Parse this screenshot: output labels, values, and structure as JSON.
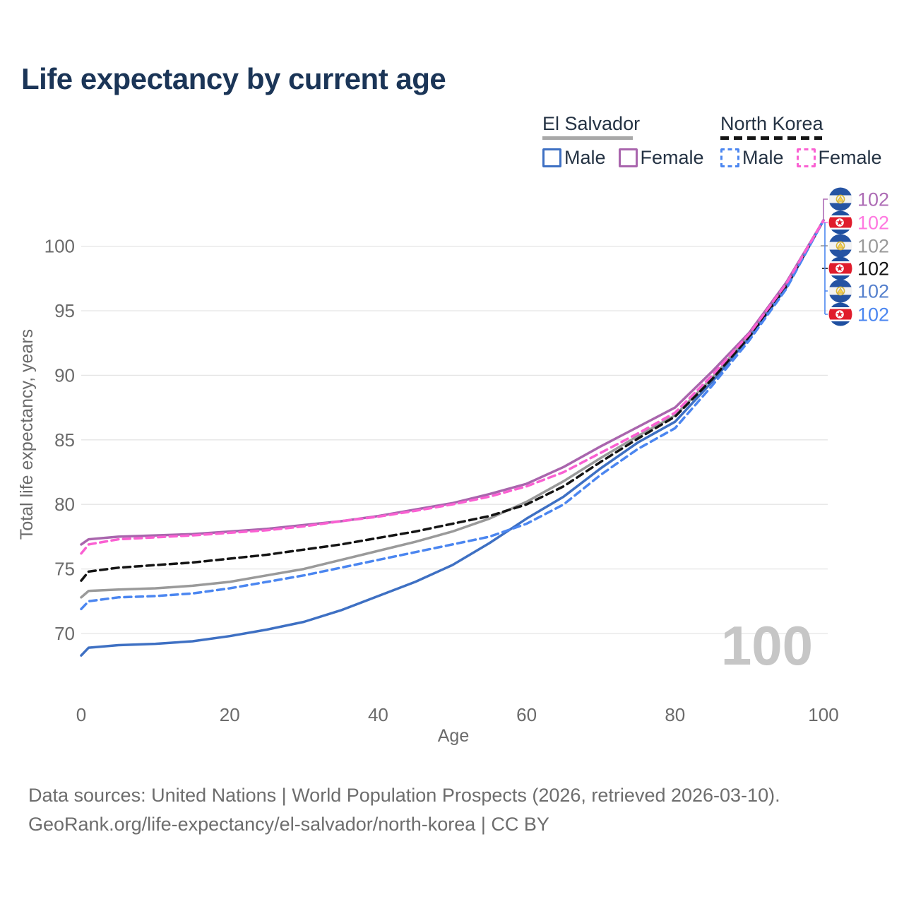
{
  "title": "Life expectancy by current age",
  "legend": {
    "groups": [
      {
        "label": "El Salvador",
        "dash": false,
        "underline_color": "#a8a8a8",
        "underline_width": 128,
        "items": [
          {
            "label": "Male",
            "color": "#3e70c3",
            "dash": false
          },
          {
            "label": "Female",
            "color": "#a965ad",
            "dash": false
          }
        ]
      },
      {
        "label": "North Korea",
        "dash": true,
        "underline_color": "#141414",
        "underline_width": 144,
        "items": [
          {
            "label": "Male",
            "color": "#4b86f0",
            "dash": true
          },
          {
            "label": "Female",
            "color": "#fa60d2",
            "dash": true
          }
        ]
      }
    ]
  },
  "axes": {
    "x_title": "Age",
    "y_title": "Total life expectancy, years",
    "x_ticks": [
      0,
      20,
      40,
      60,
      80,
      100
    ],
    "y_ticks": [
      70,
      75,
      80,
      85,
      90,
      95,
      100
    ],
    "tick_color": "#6b6b6b",
    "grid_color": "#e5e5e5"
  },
  "watermark": "100",
  "end_labels": [
    {
      "value": "102",
      "flag": "el-salvador",
      "color": "#ad6cb5"
    },
    {
      "value": "102",
      "flag": "north-korea",
      "color": "#ff78e0"
    },
    {
      "value": "102",
      "flag": "el-salvador",
      "color": "#9a9a9a"
    },
    {
      "value": "102",
      "flag": "north-korea",
      "color": "#141414"
    },
    {
      "value": "102",
      "flag": "el-salvador",
      "color": "#5580cd"
    },
    {
      "value": "102",
      "flag": "north-korea",
      "color": "#4b86f0"
    }
  ],
  "footer": {
    "line1": "Data sources: United Nations | World Population Prospects (2026, retrieved 2026-03-10).",
    "line2": "GeoRank.org/life-expectancy/el-salvador/north-korea | CC BY"
  },
  "chart_data": {
    "type": "line",
    "title": "Life expectancy by current age",
    "xlabel": "Age",
    "ylabel": "Total life expectancy, years",
    "xlim": [
      0,
      100
    ],
    "ylim": [
      68,
      103
    ],
    "grid": true,
    "legend_position": "top-right",
    "x": [
      0,
      1,
      5,
      10,
      15,
      20,
      25,
      30,
      35,
      40,
      45,
      50,
      55,
      60,
      65,
      70,
      75,
      80,
      85,
      90,
      95,
      100
    ],
    "series": [
      {
        "id": "es_total",
        "name": "El Salvador Both sexes",
        "country": "El Salvador",
        "sex": "both",
        "color": "#9a9a9a",
        "dash": false,
        "end_value": 102,
        "values": [
          72.8,
          73.3,
          73.4,
          73.5,
          73.7,
          74.0,
          74.5,
          75.0,
          75.7,
          76.4,
          77.1,
          77.9,
          78.9,
          80.2,
          81.8,
          83.6,
          85.3,
          86.9,
          89.8,
          93.1,
          97.0,
          102
        ]
      },
      {
        "id": "es_male",
        "name": "El Salvador Male",
        "country": "El Salvador",
        "sex": "male",
        "color": "#3e70c3",
        "dash": false,
        "end_value": 102,
        "values": [
          68.3,
          68.9,
          69.1,
          69.2,
          69.4,
          69.8,
          70.3,
          70.9,
          71.8,
          72.9,
          74.0,
          75.3,
          77.0,
          78.9,
          80.6,
          82.8,
          84.8,
          86.4,
          89.5,
          92.9,
          96.8,
          102
        ]
      },
      {
        "id": "es_female",
        "name": "El Salvador Female",
        "country": "El Salvador",
        "sex": "female",
        "color": "#a965ad",
        "dash": false,
        "end_value": 102,
        "values": [
          76.9,
          77.3,
          77.5,
          77.6,
          77.7,
          77.9,
          78.1,
          78.4,
          78.7,
          79.1,
          79.6,
          80.1,
          80.8,
          81.6,
          82.9,
          84.5,
          86.0,
          87.5,
          90.3,
          93.3,
          97.2,
          102
        ]
      },
      {
        "id": "nk_total",
        "name": "North Korea Both sexes",
        "country": "North Korea",
        "sex": "both",
        "color": "#141414",
        "dash": true,
        "end_value": 102,
        "values": [
          74.1,
          74.8,
          75.1,
          75.3,
          75.5,
          75.8,
          76.1,
          76.5,
          76.9,
          77.4,
          77.9,
          78.5,
          79.1,
          80.0,
          81.4,
          83.3,
          85.1,
          86.8,
          89.7,
          93.0,
          96.9,
          102
        ]
      },
      {
        "id": "nk_male",
        "name": "North Korea Male",
        "country": "North Korea",
        "sex": "male",
        "color": "#4b86f0",
        "dash": true,
        "end_value": 102,
        "values": [
          71.9,
          72.5,
          72.8,
          72.9,
          73.1,
          73.5,
          74.0,
          74.5,
          75.1,
          75.7,
          76.3,
          76.9,
          77.5,
          78.5,
          80.0,
          82.3,
          84.3,
          85.9,
          89.2,
          92.7,
          96.7,
          102
        ]
      },
      {
        "id": "nk_female",
        "name": "North Korea Female",
        "country": "North Korea",
        "sex": "female",
        "color": "#fa60d2",
        "dash": true,
        "end_value": 102,
        "values": [
          76.2,
          76.9,
          77.3,
          77.45,
          77.6,
          77.8,
          78.0,
          78.3,
          78.7,
          79.05,
          79.5,
          80.0,
          80.6,
          81.4,
          82.5,
          84.0,
          85.5,
          87.1,
          90.0,
          93.2,
          97.1,
          102
        ]
      }
    ]
  }
}
